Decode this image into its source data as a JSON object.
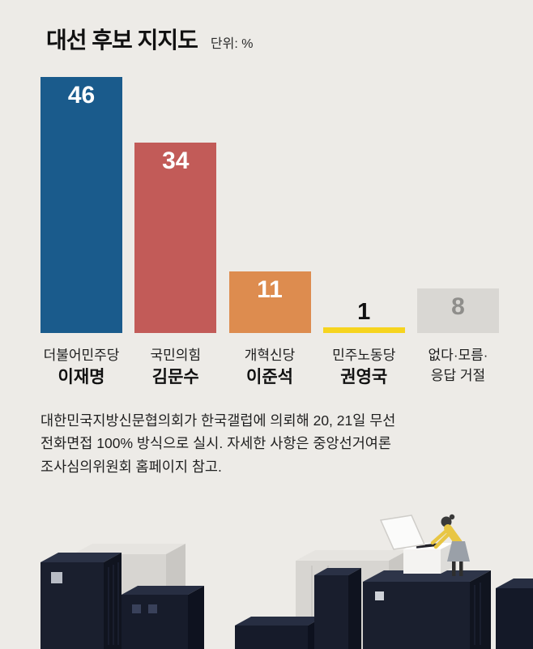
{
  "title": "대선 후보 지지도",
  "unit_label": "단위: %",
  "chart_data": {
    "type": "bar",
    "title": "대선 후보 지지도",
    "unit": "%",
    "ylim": [
      0,
      46
    ],
    "grid": false,
    "legend": false,
    "categories": [
      "더불어민주당 이재명",
      "국민의힘 김문수",
      "개혁신당 이준석",
      "민주노동당 권영국",
      "없다·모름· 응답 거절"
    ],
    "values": [
      46,
      34,
      11,
      1,
      8
    ],
    "bars": [
      {
        "party": "더불어민주당",
        "candidate": "이재명",
        "value": 46,
        "color": "#1a5b8c",
        "value_color": "#ffffff",
        "value_inside": true,
        "plain_candidate": false
      },
      {
        "party": "국민의힘",
        "candidate": "김문수",
        "value": 34,
        "color": "#c25b58",
        "value_color": "#ffffff",
        "value_inside": true,
        "plain_candidate": false
      },
      {
        "party": "개혁신당",
        "candidate": "이준석",
        "value": 11,
        "color": "#dd8c4f",
        "value_color": "#ffffff",
        "value_inside": true,
        "plain_candidate": false
      },
      {
        "party": "민주노동당",
        "candidate": "권영국",
        "value": 1,
        "color": "#f6d41f",
        "value_color": "#111111",
        "value_inside": false,
        "plain_candidate": false
      },
      {
        "party": "없다·모름·",
        "candidate": "응답 거절",
        "value": 8,
        "color": "#d9d7d3",
        "value_color": "#8f8e8b",
        "value_inside": true,
        "plain_candidate": true
      }
    ]
  },
  "footnote_lines": [
    "대한민국지방신문협의회가 한국갤럽에 의뢰해 20, 21일 무선",
    "전화면접 100% 방식으로 실시. 자세한 사항은 중앙선거여론",
    "조사심의위원회 홈페이지 참고."
  ],
  "colors": {
    "background": "#edebe7",
    "building_dark": "#1a1f2e",
    "building_gray": "#d7d5d1",
    "person_shirt": "#e8c644",
    "ballot_box": "#f4f3f1"
  }
}
